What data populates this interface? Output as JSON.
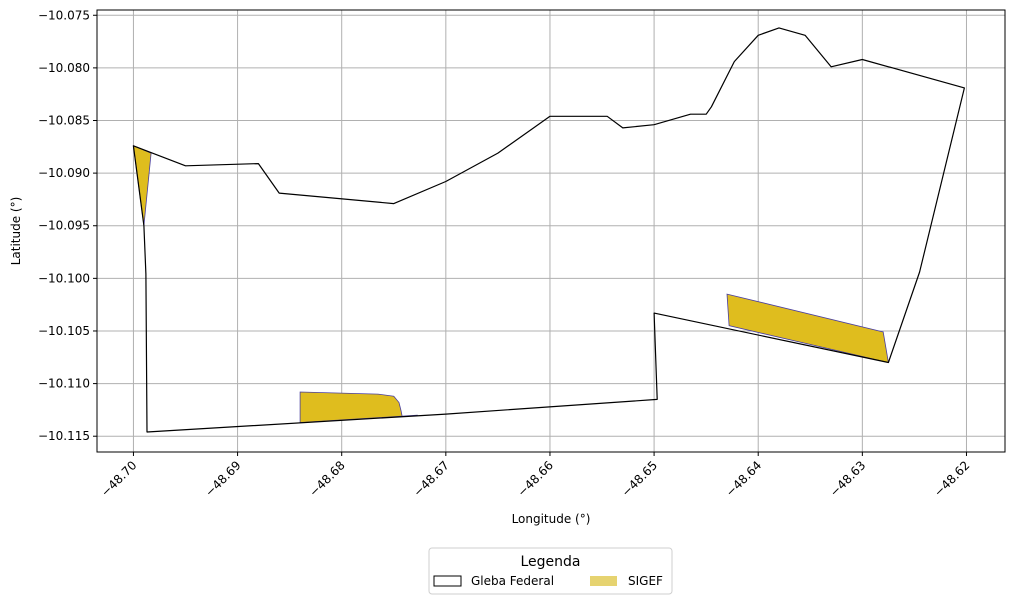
{
  "chart_data": {
    "type": "map",
    "title": "",
    "xlabel": "Longitude (°)",
    "ylabel": "Latitude (°)",
    "xlim": [
      -48.7035,
      -48.6163
    ],
    "ylim": [
      -10.1165,
      -10.0745
    ],
    "xticks": [
      -48.7,
      -48.69,
      -48.68,
      -48.67,
      -48.66,
      -48.65,
      -48.64,
      -48.63,
      -48.62
    ],
    "xtick_labels": [
      "−48.70",
      "−48.69",
      "−48.68",
      "−48.67",
      "−48.66",
      "−48.65",
      "−48.64",
      "−48.63",
      "−48.62"
    ],
    "yticks": [
      -10.075,
      -10.08,
      -10.085,
      -10.09,
      -10.095,
      -10.1,
      -10.105,
      -10.11,
      -10.115
    ],
    "ytick_labels": [
      "−10.075",
      "−10.080",
      "−10.085",
      "−10.090",
      "−10.095",
      "−10.100",
      "−10.105",
      "−10.110",
      "−10.115"
    ],
    "grid": true,
    "legend": {
      "title": "Legenda",
      "placement": "bottom-center",
      "entries": [
        "Gleba Federal",
        "SIGEF"
      ]
    },
    "series": [
      {
        "name": "Gleba Federal",
        "kind": "polygon-outline",
        "color": "#000000",
        "points": [
          [
            -48.7,
            -10.0874
          ],
          [
            -48.695,
            -10.0893
          ],
          [
            -48.688,
            -10.0891
          ],
          [
            -48.686,
            -10.0919
          ],
          [
            -48.675,
            -10.0929
          ],
          [
            -48.67,
            -10.0908
          ],
          [
            -48.665,
            -10.0881
          ],
          [
            -48.66,
            -10.0846
          ],
          [
            -48.6545,
            -10.0846
          ],
          [
            -48.653,
            -10.0857
          ],
          [
            -48.65,
            -10.0854
          ],
          [
            -48.6465,
            -10.0844
          ],
          [
            -48.645,
            -10.0844
          ],
          [
            -48.6445,
            -10.0837
          ],
          [
            -48.6423,
            -10.0794
          ],
          [
            -48.64,
            -10.0769
          ],
          [
            -48.638,
            -10.0762
          ],
          [
            -48.6355,
            -10.0769
          ],
          [
            -48.633,
            -10.0799
          ],
          [
            -48.63,
            -10.0792
          ],
          [
            -48.6202,
            -10.0819
          ],
          [
            -48.6245,
            -10.0994
          ],
          [
            -48.6275,
            -10.108
          ],
          [
            -48.65,
            -10.1033
          ],
          [
            -48.6497,
            -10.1115
          ],
          [
            -48.67,
            -10.1129
          ],
          [
            -48.6987,
            -10.1146
          ],
          [
            -48.6988,
            -10.0996
          ],
          [
            -48.699,
            -10.095
          ],
          [
            -48.7,
            -10.0874
          ]
        ]
      },
      {
        "name": "SIGEF",
        "kind": "filled-polygons",
        "color": "#dfbd1e",
        "edge_color": "#4a3fa0",
        "polygons": [
          [
            [
              -48.7,
              -10.0874
            ],
            [
              -48.6983,
              -10.0881
            ],
            [
              -48.699,
              -10.095
            ],
            [
              -48.7,
              -10.0874
            ]
          ],
          [
            [
              -48.684,
              -10.1108
            ],
            [
              -48.6765,
              -10.111
            ],
            [
              -48.675,
              -10.1112
            ],
            [
              -48.6745,
              -10.1118
            ],
            [
              -48.6743,
              -10.1126
            ],
            [
              -48.6742,
              -10.1131
            ],
            [
              -48.6727,
              -10.113
            ],
            [
              -48.684,
              -10.1137
            ],
            [
              -48.684,
              -10.1108
            ]
          ],
          [
            [
              -48.643,
              -10.1015
            ],
            [
              -48.628,
              -10.1051
            ],
            [
              -48.6275,
              -10.108
            ],
            [
              -48.6428,
              -10.1045
            ],
            [
              -48.643,
              -10.1015
            ]
          ]
        ]
      }
    ]
  }
}
